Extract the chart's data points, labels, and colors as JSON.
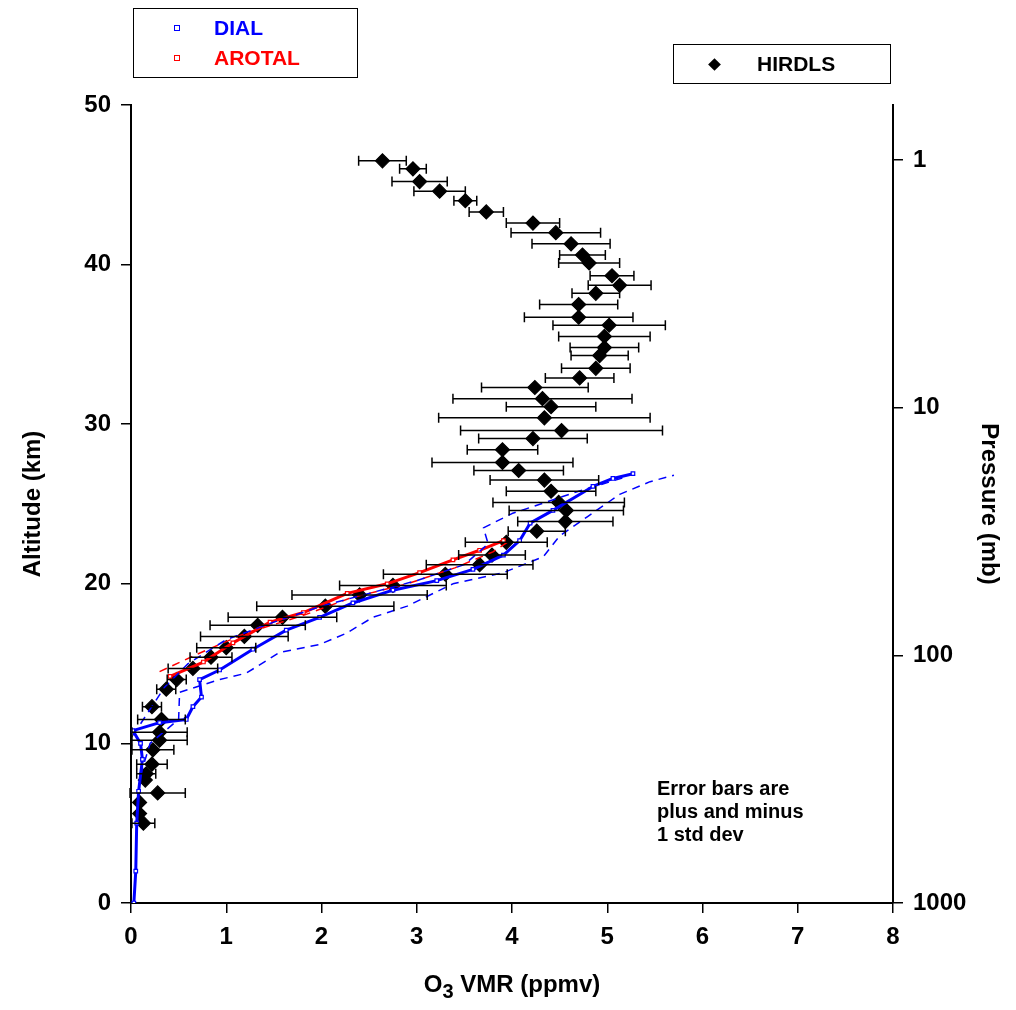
{
  "chart_data": {
    "type": "line",
    "xlabel": "O$_{3}$ VMR  (ppmv)",
    "ylabel": "Altitude (km)",
    "y2label": "Pressure (mb)",
    "xlim": [
      0,
      8
    ],
    "xticks": [
      0,
      1,
      2,
      3,
      4,
      5,
      6,
      7,
      8
    ],
    "ylim": [
      0,
      50
    ],
    "yticks": [
      0,
      10,
      20,
      30,
      40,
      50
    ],
    "y2lim": [
      1000,
      0.6
    ],
    "y2ticks": [
      1,
      10,
      100,
      1000
    ],
    "log": "y2",
    "grid": false,
    "legend": "top",
    "annotations": [
      "Error bars are\nplus and minus\n1 std dev"
    ],
    "series": [
      {
        "name": "DIAL",
        "type": "line",
        "color": "#0000ff",
        "marker": "square",
        "x": [
          0.03,
          0.05,
          0.06,
          0.08,
          0.12,
          0.1,
          0.02,
          0.3,
          0.58,
          0.65,
          0.74,
          0.72,
          0.93,
          1.28,
          1.63,
          1.98,
          2.33,
          2.75,
          3.21,
          3.59,
          3.91,
          4.08,
          4.19,
          4.43,
          4.85,
          5.06,
          5.27
        ],
        "values": [
          0,
          2,
          5,
          7,
          9,
          10,
          10.8,
          11.3,
          11.5,
          12.3,
          12.9,
          14.0,
          14.6,
          15.9,
          17.1,
          17.9,
          18.8,
          19.6,
          20.2,
          20.9,
          21.8,
          22.7,
          23.8,
          24.6,
          26.1,
          26.6,
          26.9
        ]
      },
      {
        "type": "line",
        "color": "#0000ff",
        "marker": "none",
        "line_style": "dashed",
        "x": [
          0.1,
          0.2,
          0.5,
          0.51,
          0.93,
          1.21,
          1.56,
          1.98,
          2.26,
          2.54,
          2.9,
          3.38,
          3.91,
          4.33,
          4.5,
          4.79,
          5.13,
          5.45,
          5.7
        ],
        "values": [
          8,
          10,
          11.5,
          13.2,
          14.0,
          14.4,
          15.7,
          16.2,
          16.9,
          17.9,
          18.6,
          20.0,
          20.7,
          21.7,
          23.0,
          24.2,
          25.6,
          26.4,
          26.8
        ]
      },
      {
        "type": "line",
        "color": "#0000ff",
        "marker": "none",
        "line_style": "dashed",
        "x": [
          0.02,
          0.35,
          0.6,
          1.0,
          1.5,
          2.0,
          2.5,
          3.0,
          3.5,
          3.75,
          3.7,
          4.0,
          4.3,
          4.7,
          5.2
        ],
        "values": [
          10.5,
          13.5,
          15,
          16.5,
          17.6,
          18.6,
          19.4,
          20.2,
          21.2,
          22.5,
          23.5,
          24.4,
          25,
          25.8,
          26.7
        ]
      },
      {
        "name": "AROTAL",
        "type": "line",
        "color": "#ff0000",
        "marker": "square",
        "x": [
          0.41,
          0.76,
          1.07,
          1.46,
          1.81,
          2.27,
          2.69,
          3.03,
          3.38,
          3.66,
          3.91
        ],
        "values": [
          14.2,
          15.1,
          16.3,
          17.6,
          18.2,
          19.4,
          20.0,
          20.7,
          21.5,
          22.1,
          22.7
        ]
      },
      {
        "type": "line",
        "color": "#ff0000",
        "marker": "none",
        "line_style": "dashed",
        "x": [
          0.3,
          0.7,
          1.2,
          1.8,
          2.3,
          2.9,
          3.4,
          3.8,
          4.0
        ],
        "values": [
          14.5,
          15.6,
          16.9,
          18.0,
          19.1,
          20.0,
          21.0,
          22.0,
          22.8
        ]
      },
      {
        "name": "HIRDLS",
        "type": "scatter",
        "color": "#000000",
        "marker": "diamond",
        "x": [
          2.64,
          2.96,
          3.03,
          3.24,
          3.51,
          3.73,
          4.22,
          4.46,
          4.62,
          4.74,
          4.81,
          5.05,
          5.13,
          4.88,
          4.7,
          4.7,
          5.02,
          4.97,
          4.97,
          4.92,
          4.88,
          4.71,
          4.24,
          4.32,
          4.41,
          4.34,
          4.52,
          4.22,
          3.9,
          3.9,
          4.07,
          4.34,
          4.41,
          4.49,
          4.57,
          4.56,
          4.26,
          3.94,
          3.79,
          3.66,
          3.3,
          2.75,
          2.4,
          2.04,
          1.59,
          1.33,
          1.19,
          1.0,
          0.84,
          0.65,
          0.48,
          0.37,
          0.22,
          0.32,
          0.3,
          0.3,
          0.23,
          0.22,
          0.16,
          0.15,
          0.28,
          0.09,
          0.09,
          0.13
        ],
        "values": [
          46.5,
          46.0,
          45.2,
          44.6,
          44.0,
          43.3,
          42.6,
          42.0,
          41.3,
          40.6,
          40.1,
          39.3,
          38.7,
          38.2,
          37.5,
          36.7,
          36.2,
          35.5,
          34.8,
          34.3,
          33.5,
          32.9,
          32.3,
          31.6,
          31.1,
          30.4,
          29.6,
          29.1,
          28.4,
          27.6,
          27.1,
          26.5,
          25.8,
          25.1,
          24.6,
          23.9,
          23.3,
          22.6,
          21.8,
          21.2,
          20.6,
          19.9,
          19.3,
          18.6,
          17.9,
          17.4,
          16.7,
          16.0,
          15.4,
          14.7,
          14.0,
          13.4,
          12.3,
          11.5,
          10.7,
          10.2,
          9.6,
          8.7,
          8.1,
          7.7,
          6.9,
          6.3,
          5.6,
          5.0
        ],
        "xerrors": [
          0.25,
          0.14,
          0.29,
          0.27,
          0.12,
          0.18,
          0.28,
          0.47,
          0.41,
          0.24,
          0.32,
          0.23,
          0.33,
          0.25,
          0.41,
          0.57,
          0.59,
          0.48,
          0.36,
          0.3,
          0.36,
          0.36,
          0.56,
          0.94,
          0.47,
          1.11,
          1.06,
          0.57,
          0.37,
          0.74,
          0.47,
          0.57,
          0.47,
          0.69,
          0.6,
          0.5,
          0.3,
          0.43,
          0.35,
          0.56,
          0.65,
          0.56,
          0.71,
          0.72,
          0.57,
          0.5,
          0.46,
          0.31,
          0.22,
          0.26,
          0.1,
          0.1,
          0.1,
          0.25,
          0.29,
          0.29,
          0.22,
          0.16,
          0.1,
          null,
          0.29,
          null,
          null,
          0.12
        ]
      }
    ]
  }
}
